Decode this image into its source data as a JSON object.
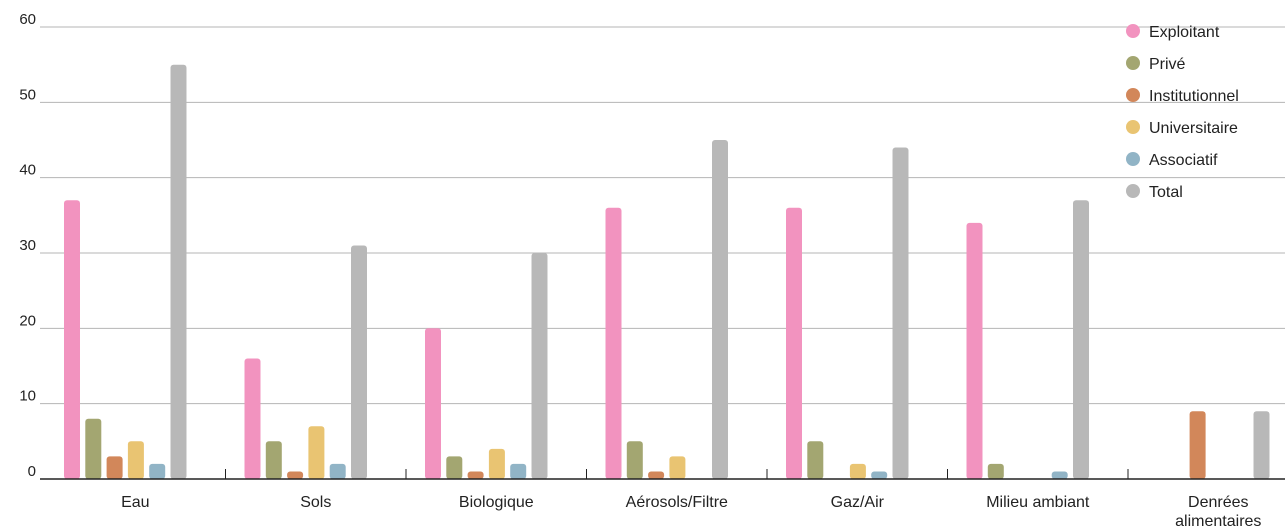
{
  "chart_data": {
    "type": "bar",
    "categories": [
      "Eau",
      "Sols",
      "Biologique",
      "Aérosols/Filtre",
      "Gaz/Air",
      "Milieu ambiant",
      "Denrées alimentaires"
    ],
    "category_lines": [
      [
        "Eau"
      ],
      [
        "Sols"
      ],
      [
        "Biologique"
      ],
      [
        "Aérosols/Filtre"
      ],
      [
        "Gaz/Air"
      ],
      [
        "Milieu ambiant"
      ],
      [
        "Denrées",
        "alimentaires"
      ]
    ],
    "series": [
      {
        "name": "Exploitant",
        "color": "#F293BF",
        "values": [
          37,
          16,
          20,
          36,
          36,
          34,
          0
        ]
      },
      {
        "name": "Privé",
        "color": "#A3A671",
        "values": [
          8,
          5,
          3,
          5,
          5,
          2,
          0
        ]
      },
      {
        "name": "Institutionnel",
        "color": "#D2875A",
        "values": [
          3,
          1,
          1,
          1,
          0,
          0,
          9
        ]
      },
      {
        "name": "Universitaire",
        "color": "#E9C472",
        "values": [
          5,
          7,
          4,
          3,
          2,
          0,
          0
        ]
      },
      {
        "name": "Associatif",
        "color": "#91B4C6",
        "values": [
          2,
          2,
          2,
          0,
          1,
          1,
          0
        ]
      },
      {
        "name": "Total",
        "color": "#B8B8B8",
        "values": [
          55,
          31,
          30,
          45,
          44,
          37,
          9
        ]
      }
    ],
    "yticks": [
      0,
      10,
      20,
      30,
      40,
      50,
      60
    ],
    "ylim": [
      0,
      60
    ],
    "grid": true,
    "legend": "top-right",
    "title": "",
    "xlabel": "",
    "ylabel": ""
  }
}
